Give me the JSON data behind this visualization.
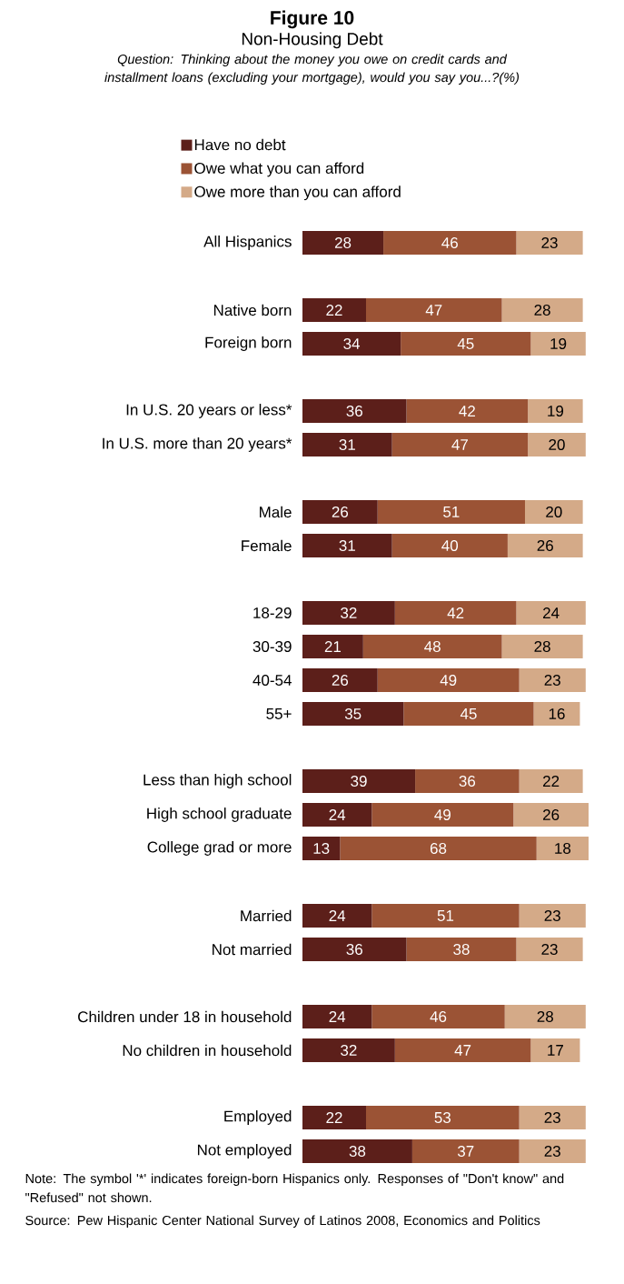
{
  "chart_data": {
    "type": "bar",
    "orientation": "horizontal",
    "stacked": true,
    "data_labels": true,
    "legend": "top",
    "tick_labels": "y",
    "title": "Figure 10",
    "subtitle": "Non-Housing Debt",
    "annotations": [
      "Question: Thinking about the money you owe on credit cards and installment loans (excluding your mortgage), would you say you...?(%)",
      "Note: The symbol '*' indicates foreign-born Hispanics only. Responses of \"Don't know\" and \"Refused\" not shown.",
      "Source: Pew Hispanic Center National Survey of Latinos 2008, Economics and Politics"
    ],
    "categories": [
      "All Hispanics",
      null,
      "Native born",
      "Foreign born",
      null,
      "In U.S. 20 years or less*",
      "In U.S. more than 20 years*",
      null,
      "Male",
      "Female",
      null,
      "18-29",
      "30-39",
      "40-54",
      "55+",
      null,
      "Less than high school",
      "High school graduate",
      "College grad or more",
      null,
      "Married",
      "Not married",
      null,
      "Children under 18 in household",
      "No children in household",
      null,
      "Employed",
      "Not employed"
    ],
    "series": [
      {
        "name": "Have no debt",
        "color": "#5c1f1a",
        "values": [
          28,
          null,
          22,
          34,
          null,
          36,
          31,
          null,
          26,
          31,
          null,
          32,
          21,
          26,
          35,
          null,
          39,
          24,
          13,
          null,
          24,
          36,
          null,
          24,
          32,
          null,
          22,
          38
        ]
      },
      {
        "name": "Owe what you can afford",
        "color": "#9b5335",
        "values": [
          46,
          null,
          47,
          45,
          null,
          42,
          47,
          null,
          51,
          40,
          null,
          42,
          48,
          49,
          45,
          null,
          36,
          49,
          68,
          null,
          51,
          38,
          null,
          46,
          47,
          null,
          53,
          37
        ]
      },
      {
        "name": "Owe more than you can afford",
        "color": "#d4aa88",
        "values": [
          23,
          null,
          28,
          19,
          null,
          19,
          20,
          null,
          20,
          26,
          null,
          24,
          28,
          23,
          16,
          null,
          22,
          26,
          18,
          null,
          23,
          23,
          null,
          28,
          17,
          null,
          23,
          23
        ]
      }
    ]
  }
}
